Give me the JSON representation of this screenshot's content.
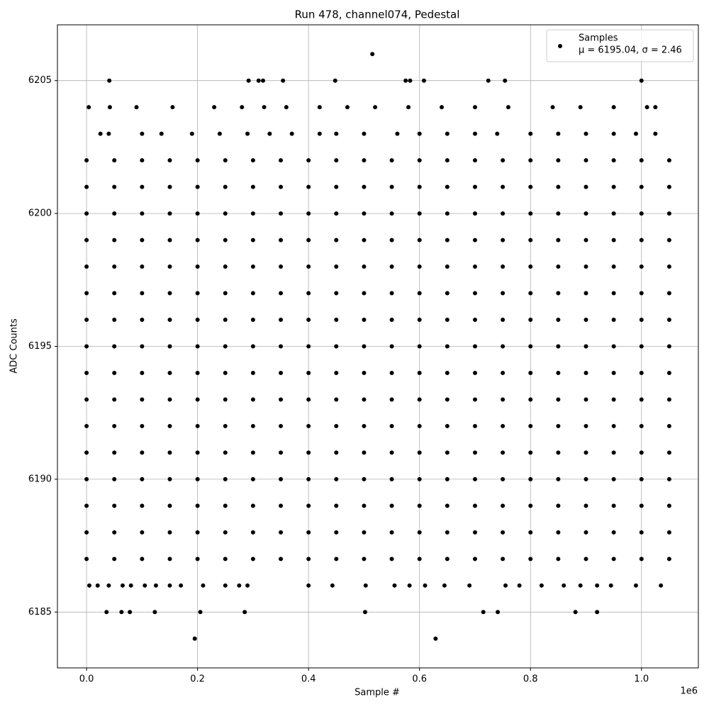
{
  "chart_data": {
    "type": "scatter",
    "title": "Run 478, channel074, Pedestal",
    "x_label": "Sample #",
    "y_label": "ADC Counts",
    "x_offset_label": "1e6",
    "legend_note": "μ = 6195.04, σ = 2.46",
    "legend_position": "upper right",
    "grid": true,
    "xlim": [
      -52500,
      1102500
    ],
    "ylim": [
      6182.9,
      6207.1
    ],
    "xticks": [
      {
        "value": 0,
        "label": "0.0"
      },
      {
        "value": 200000,
        "label": "0.2"
      },
      {
        "value": 400000,
        "label": "0.4"
      },
      {
        "value": 600000,
        "label": "0.6"
      },
      {
        "value": 800000,
        "label": "0.8"
      },
      {
        "value": 1000000,
        "label": "1.0"
      }
    ],
    "yticks": [
      6185,
      6190,
      6195,
      6200,
      6205
    ],
    "series": [
      {
        "name": "Samples",
        "color": "#000000",
        "x": [
          0,
          50000,
          100000,
          150000,
          200000,
          250000,
          300000,
          350000,
          400000,
          450000,
          500000,
          550000,
          600000,
          650000,
          700000,
          750000,
          800000,
          850000,
          900000,
          950000,
          1000000,
          1050000,
          0,
          50000,
          100000,
          150000,
          200000,
          250000,
          300000,
          350000,
          400000,
          450000,
          500000,
          550000,
          600000,
          650000,
          700000,
          750000,
          800000,
          850000,
          900000,
          950000,
          1000000,
          1050000,
          0,
          50000,
          100000,
          150000,
          200000,
          250000,
          300000,
          350000,
          400000,
          450000,
          500000,
          550000,
          600000,
          650000,
          700000,
          750000,
          800000,
          850000,
          900000,
          950000,
          1000000,
          1050000,
          0,
          50000,
          100000,
          150000,
          200000,
          250000,
          300000,
          350000,
          400000,
          450000,
          500000,
          550000,
          600000,
          650000,
          700000,
          750000,
          800000,
          850000,
          900000,
          950000,
          1000000,
          1050000,
          0,
          50000,
          100000,
          150000,
          200000,
          250000,
          300000,
          350000,
          400000,
          450000,
          500000,
          550000,
          600000,
          650000,
          700000,
          750000,
          800000,
          850000,
          900000,
          950000,
          1000000,
          1050000,
          0,
          50000,
          100000,
          150000,
          200000,
          250000,
          300000,
          350000,
          400000,
          450000,
          500000,
          550000,
          600000,
          650000,
          700000,
          750000,
          800000,
          850000,
          900000,
          950000,
          1000000,
          1050000,
          0,
          50000,
          100000,
          150000,
          200000,
          250000,
          300000,
          350000,
          400000,
          450000,
          500000,
          550000,
          600000,
          650000,
          700000,
          750000,
          800000,
          850000,
          900000,
          950000,
          1000000,
          1050000,
          0,
          50000,
          100000,
          150000,
          200000,
          250000,
          300000,
          350000,
          400000,
          450000,
          500000,
          550000,
          600000,
          650000,
          700000,
          750000,
          800000,
          850000,
          900000,
          950000,
          1000000,
          1050000,
          0,
          50000,
          100000,
          150000,
          200000,
          250000,
          300000,
          350000,
          400000,
          450000,
          500000,
          550000,
          600000,
          650000,
          700000,
          750000,
          800000,
          850000,
          900000,
          950000,
          1000000,
          1050000,
          0,
          50000,
          100000,
          150000,
          200000,
          250000,
          300000,
          350000,
          400000,
          450000,
          500000,
          550000,
          600000,
          650000,
          700000,
          750000,
          800000,
          850000,
          900000,
          950000,
          1000000,
          1050000,
          0,
          50000,
          100000,
          150000,
          200000,
          250000,
          300000,
          350000,
          400000,
          450000,
          500000,
          550000,
          600000,
          650000,
          700000,
          750000,
          800000,
          850000,
          900000,
          950000,
          1000000,
          1050000,
          0,
          50000,
          100000,
          150000,
          200000,
          250000,
          300000,
          350000,
          400000,
          450000,
          500000,
          550000,
          600000,
          650000,
          700000,
          750000,
          800000,
          850000,
          900000,
          950000,
          1000000,
          1050000,
          0,
          50000,
          100000,
          150000,
          200000,
          250000,
          300000,
          350000,
          400000,
          450000,
          500000,
          550000,
          600000,
          650000,
          700000,
          750000,
          800000,
          850000,
          900000,
          950000,
          1000000,
          1050000,
          0,
          50000,
          100000,
          150000,
          200000,
          250000,
          300000,
          350000,
          400000,
          450000,
          500000,
          550000,
          600000,
          650000,
          700000,
          750000,
          800000,
          850000,
          900000,
          950000,
          1000000,
          1050000,
          0,
          50000,
          100000,
          150000,
          200000,
          250000,
          300000,
          350000,
          400000,
          450000,
          500000,
          550000,
          600000,
          650000,
          700000,
          750000,
          800000,
          850000,
          900000,
          950000,
          1000000,
          1050000,
          0,
          50000,
          100000,
          150000,
          200000,
          250000,
          300000,
          350000,
          400000,
          450000,
          500000,
          550000,
          600000,
          650000,
          700000,
          750000,
          800000,
          850000,
          900000,
          950000,
          1000000,
          1050000,
          515000,
          41000,
          292000,
          310000,
          318000,
          354000,
          448000,
          575000,
          583000,
          608000,
          724000,
          754000,
          1000000,
          4000,
          42000,
          90000,
          155000,
          230000,
          280000,
          320000,
          360000,
          420000,
          470000,
          520000,
          580000,
          640000,
          700000,
          760000,
          840000,
          890000,
          950000,
          1010000,
          1025000,
          25000,
          40000,
          100000,
          135000,
          190000,
          240000,
          290000,
          330000,
          370000,
          420000,
          450000,
          500000,
          560000,
          600000,
          650000,
          700000,
          740000,
          800000,
          850000,
          900000,
          950000,
          990000,
          1025000,
          5000,
          20000,
          40000,
          65000,
          80000,
          105000,
          125000,
          150000,
          170000,
          210000,
          250000,
          275000,
          290000,
          400000,
          443000,
          503000,
          555000,
          582000,
          610000,
          645000,
          690000,
          755000,
          780000,
          820000,
          860000,
          890000,
          920000,
          945000,
          990000,
          1035000,
          36000,
          63000,
          78000,
          123000,
          205000,
          285000,
          502000,
          715000,
          741000,
          881000,
          920000,
          195000,
          629000
        ],
        "y": [
          6187,
          6187,
          6187,
          6187,
          6187,
          6187,
          6187,
          6187,
          6187,
          6187,
          6187,
          6187,
          6187,
          6187,
          6187,
          6187,
          6187,
          6187,
          6187,
          6187,
          6187,
          6187,
          6188,
          6188,
          6188,
          6188,
          6188,
          6188,
          6188,
          6188,
          6188,
          6188,
          6188,
          6188,
          6188,
          6188,
          6188,
          6188,
          6188,
          6188,
          6188,
          6188,
          6188,
          6188,
          6189,
          6189,
          6189,
          6189,
          6189,
          6189,
          6189,
          6189,
          6189,
          6189,
          6189,
          6189,
          6189,
          6189,
          6189,
          6189,
          6189,
          6189,
          6189,
          6189,
          6189,
          6189,
          6190,
          6190,
          6190,
          6190,
          6190,
          6190,
          6190,
          6190,
          6190,
          6190,
          6190,
          6190,
          6190,
          6190,
          6190,
          6190,
          6190,
          6190,
          6190,
          6190,
          6190,
          6190,
          6191,
          6191,
          6191,
          6191,
          6191,
          6191,
          6191,
          6191,
          6191,
          6191,
          6191,
          6191,
          6191,
          6191,
          6191,
          6191,
          6191,
          6191,
          6191,
          6191,
          6191,
          6191,
          6192,
          6192,
          6192,
          6192,
          6192,
          6192,
          6192,
          6192,
          6192,
          6192,
          6192,
          6192,
          6192,
          6192,
          6192,
          6192,
          6192,
          6192,
          6192,
          6192,
          6192,
          6192,
          6193,
          6193,
          6193,
          6193,
          6193,
          6193,
          6193,
          6193,
          6193,
          6193,
          6193,
          6193,
          6193,
          6193,
          6193,
          6193,
          6193,
          6193,
          6193,
          6193,
          6193,
          6193,
          6194,
          6194,
          6194,
          6194,
          6194,
          6194,
          6194,
          6194,
          6194,
          6194,
          6194,
          6194,
          6194,
          6194,
          6194,
          6194,
          6194,
          6194,
          6194,
          6194,
          6194,
          6194,
          6195,
          6195,
          6195,
          6195,
          6195,
          6195,
          6195,
          6195,
          6195,
          6195,
          6195,
          6195,
          6195,
          6195,
          6195,
          6195,
          6195,
          6195,
          6195,
          6195,
          6195,
          6195,
          6196,
          6196,
          6196,
          6196,
          6196,
          6196,
          6196,
          6196,
          6196,
          6196,
          6196,
          6196,
          6196,
          6196,
          6196,
          6196,
          6196,
          6196,
          6196,
          6196,
          6196,
          6196,
          6197,
          6197,
          6197,
          6197,
          6197,
          6197,
          6197,
          6197,
          6197,
          6197,
          6197,
          6197,
          6197,
          6197,
          6197,
          6197,
          6197,
          6197,
          6197,
          6197,
          6197,
          6197,
          6198,
          6198,
          6198,
          6198,
          6198,
          6198,
          6198,
          6198,
          6198,
          6198,
          6198,
          6198,
          6198,
          6198,
          6198,
          6198,
          6198,
          6198,
          6198,
          6198,
          6198,
          6198,
          6199,
          6199,
          6199,
          6199,
          6199,
          6199,
          6199,
          6199,
          6199,
          6199,
          6199,
          6199,
          6199,
          6199,
          6199,
          6199,
          6199,
          6199,
          6199,
          6199,
          6199,
          6199,
          6200,
          6200,
          6200,
          6200,
          6200,
          6200,
          6200,
          6200,
          6200,
          6200,
          6200,
          6200,
          6200,
          6200,
          6200,
          6200,
          6200,
          6200,
          6200,
          6200,
          6200,
          6200,
          6201,
          6201,
          6201,
          6201,
          6201,
          6201,
          6201,
          6201,
          6201,
          6201,
          6201,
          6201,
          6201,
          6201,
          6201,
          6201,
          6201,
          6201,
          6201,
          6201,
          6201,
          6201,
          6202,
          6202,
          6202,
          6202,
          6202,
          6202,
          6202,
          6202,
          6202,
          6202,
          6202,
          6202,
          6202,
          6202,
          6202,
          6202,
          6202,
          6202,
          6202,
          6202,
          6202,
          6202,
          6206,
          6205,
          6205,
          6205,
          6205,
          6205,
          6205,
          6205,
          6205,
          6205,
          6205,
          6205,
          6205,
          6204,
          6204,
          6204,
          6204,
          6204,
          6204,
          6204,
          6204,
          6204,
          6204,
          6204,
          6204,
          6204,
          6204,
          6204,
          6204,
          6204,
          6204,
          6204,
          6204,
          6203,
          6203,
          6203,
          6203,
          6203,
          6203,
          6203,
          6203,
          6203,
          6203,
          6203,
          6203,
          6203,
          6203,
          6203,
          6203,
          6203,
          6203,
          6203,
          6203,
          6203,
          6203,
          6203,
          6186,
          6186,
          6186,
          6186,
          6186,
          6186,
          6186,
          6186,
          6186,
          6186,
          6186,
          6186,
          6186,
          6186,
          6186,
          6186,
          6186,
          6186,
          6186,
          6186,
          6186,
          6186,
          6186,
          6186,
          6186,
          6186,
          6186,
          6186,
          6186,
          6186,
          6185,
          6185,
          6185,
          6185,
          6185,
          6185,
          6185,
          6185,
          6185,
          6185,
          6185,
          6184,
          6184
        ]
      }
    ]
  }
}
